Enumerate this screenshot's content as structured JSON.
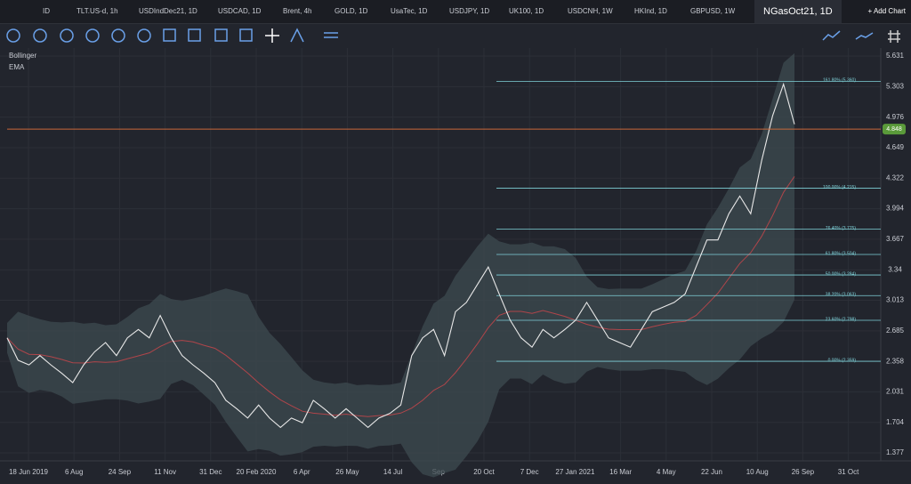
{
  "tabs": [
    "ID",
    "TLT.US-d, 1h",
    "USDIndDec21, 1D",
    "USDCAD, 1D",
    "Brent, 4h",
    "GOLD, 1D",
    "UsaTec, 1D",
    "USDJPY, 1D",
    "UK100, 1D",
    "USDCNH, 1W",
    "HKInd, 1D",
    "GBPUSD, 1W",
    "NGasOct21, 1D"
  ],
  "active_tab": 12,
  "add_chart": "+ Add Chart",
  "indicators": [
    "Bollinger",
    "EMA"
  ],
  "chart": {
    "ylim": [
      1.377,
      5.631
    ],
    "yticks": [
      5.631,
      5.303,
      4.976,
      4.649,
      4.322,
      3.994,
      3.667,
      3.34,
      3.013,
      2.685,
      2.358,
      2.031,
      1.704,
      1.377
    ],
    "xticks": [
      "18 Jun 2019",
      "6 Aug",
      "24 Sep",
      "11 Nov",
      "31 Dec",
      "20 Feb 2020",
      "6 Apr",
      "26 May",
      "14 Jul",
      "Sep",
      "20 Oct",
      "7 Dec",
      "27 Jan 2021",
      "16 Mar",
      "4 May",
      "22 Jun",
      "10 Aug",
      "26 Sep",
      "31 Oct"
    ],
    "price": {
      "value": 4.848,
      "label": "4.848"
    },
    "fib_levels": [
      {
        "label": "161.80% (5.360)",
        "value": 5.36
      },
      {
        "label": "100.00% (4.215)",
        "value": 4.215
      },
      {
        "label": "76.40% (3.775)",
        "value": 3.775
      },
      {
        "label": "61.80% (3.504)",
        "value": 3.504
      },
      {
        "label": "50.00% (3.284)",
        "value": 3.284
      },
      {
        "label": "38.20% (3.063)",
        "value": 3.063
      },
      {
        "label": "23.60% (2.798)",
        "value": 2.798
      },
      {
        "label": "0.00% (2.359)",
        "value": 2.359
      }
    ],
    "series": [
      2.61,
      2.37,
      2.32,
      2.42,
      2.32,
      2.23,
      2.13,
      2.32,
      2.46,
      2.56,
      2.42,
      2.61,
      2.7,
      2.61,
      2.85,
      2.61,
      2.42,
      2.32,
      2.23,
      2.13,
      1.94,
      1.85,
      1.75,
      1.89,
      1.75,
      1.65,
      1.75,
      1.7,
      1.94,
      1.85,
      1.75,
      1.85,
      1.75,
      1.65,
      1.75,
      1.8,
      1.89,
      2.42,
      2.61,
      2.7,
      2.42,
      2.89,
      2.99,
      3.18,
      3.37,
      3.08,
      2.8,
      2.61,
      2.51,
      2.7,
      2.61,
      2.7,
      2.8,
      2.99,
      2.8,
      2.61,
      2.56,
      2.51,
      2.7,
      2.89,
      2.94,
      2.99,
      3.08,
      3.37,
      3.66,
      3.66,
      3.94,
      4.13,
      3.94,
      4.51,
      4.99,
      5.33,
      4.9
    ]
  }
}
